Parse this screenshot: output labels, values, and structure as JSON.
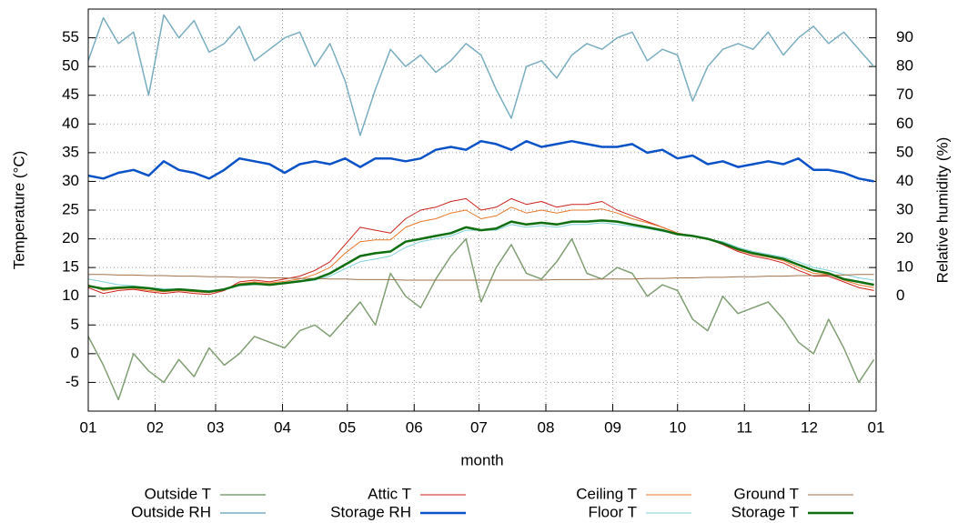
{
  "chart_data": {
    "type": "line",
    "xlabel": "month",
    "ylabel": "Temperature (°C)",
    "y2label": "Relative humidity (%)",
    "x": [
      0,
      7,
      14,
      21,
      28,
      35,
      42,
      49,
      56,
      63,
      70,
      77,
      84,
      91,
      98,
      105,
      112,
      119,
      126,
      133,
      140,
      147,
      154,
      161,
      168,
      175,
      182,
      189,
      196,
      203,
      210,
      217,
      224,
      231,
      238,
      245,
      252,
      259,
      266,
      273,
      280,
      287,
      294,
      301,
      308,
      315,
      322,
      329,
      336,
      343,
      350,
      357,
      364
    ],
    "xlim": [
      0,
      365
    ],
    "xticks": [
      {
        "value": 0,
        "label": "01"
      },
      {
        "value": 31,
        "label": "02"
      },
      {
        "value": 59,
        "label": "03"
      },
      {
        "value": 90,
        "label": "04"
      },
      {
        "value": 120,
        "label": "05"
      },
      {
        "value": 151,
        "label": "06"
      },
      {
        "value": 181,
        "label": "07"
      },
      {
        "value": 212,
        "label": "08"
      },
      {
        "value": 243,
        "label": "09"
      },
      {
        "value": 273,
        "label": "10"
      },
      {
        "value": 304,
        "label": "11"
      },
      {
        "value": 334,
        "label": "12"
      },
      {
        "value": 365,
        "label": "01"
      }
    ],
    "ylim": [
      -10,
      60
    ],
    "yticks": [
      -5,
      0,
      5,
      10,
      15,
      20,
      25,
      30,
      35,
      40,
      45,
      50,
      55
    ],
    "y2lim": [
      -40,
      100
    ],
    "y2ticks": [
      0,
      10,
      20,
      30,
      40,
      50,
      60,
      70,
      80,
      90
    ],
    "grid": true,
    "legend": "bottom",
    "series": [
      {
        "name": "Outside T",
        "color": "#7f9f73",
        "width": 1.5,
        "values": [
          3.0,
          -2.0,
          -8.0,
          0.0,
          -3.0,
          -5.0,
          -1.0,
          -4.0,
          1.0,
          -2.0,
          0.0,
          3.0,
          2.0,
          1.0,
          4.0,
          5.0,
          3.0,
          6.0,
          9.0,
          5.0,
          14.0,
          10.0,
          8.0,
          13.0,
          17.0,
          20.0,
          9.0,
          15.0,
          19.0,
          14.0,
          13.0,
          16.0,
          20.0,
          14.0,
          13.0,
          15.0,
          14.0,
          10.0,
          12.0,
          11.0,
          6.0,
          4.0,
          10.0,
          7.0,
          8.0,
          9.0,
          6.0,
          2.0,
          0.0,
          6.0,
          1.0,
          -5.0,
          -1.0
        ]
      },
      {
        "name": "Outside RH",
        "color": "#79adc0",
        "width": 1.5,
        "axis": "y2",
        "values": [
          82,
          97,
          88,
          92,
          70,
          98,
          90,
          96,
          85,
          88,
          94,
          82,
          86,
          90,
          92,
          80,
          88,
          75,
          56,
          72,
          86,
          80,
          84,
          78,
          82,
          88,
          84,
          72,
          62,
          80,
          82,
          76,
          84,
          88,
          86,
          90,
          92,
          82,
          86,
          84,
          68,
          80,
          86,
          88,
          86,
          92,
          84,
          90,
          94,
          88,
          92,
          86,
          80
        ]
      },
      {
        "name": "Attic T",
        "color": "#cc1f1a",
        "width": 1,
        "values": [
          11.5,
          10.5,
          11.0,
          11.2,
          10.8,
          10.5,
          10.8,
          10.5,
          10.3,
          11.0,
          12.5,
          12.8,
          12.5,
          13.0,
          13.5,
          14.5,
          16.0,
          19.0,
          22.0,
          21.5,
          21.0,
          23.5,
          25.0,
          25.5,
          26.5,
          27.0,
          25.0,
          25.5,
          27.0,
          26.0,
          26.5,
          25.5,
          26.0,
          26.0,
          26.5,
          25.0,
          24.0,
          23.0,
          22.0,
          21.0,
          20.5,
          20.0,
          19.0,
          17.8,
          17.0,
          16.5,
          15.8,
          14.5,
          13.5,
          13.5,
          12.5,
          11.5,
          11.0
        ]
      },
      {
        "name": "Storage RH",
        "color": "#0a52c8",
        "width": 2.5,
        "axis": "y2",
        "values": [
          42,
          41,
          43,
          44,
          42,
          47,
          44,
          43,
          41,
          44,
          48,
          47,
          46,
          43,
          46,
          47,
          46,
          48,
          45,
          48,
          48,
          47,
          48,
          51,
          52,
          51,
          54,
          53,
          51,
          54,
          52,
          53,
          54,
          53,
          52,
          52,
          53,
          50,
          51,
          48,
          49,
          46,
          47,
          45,
          46,
          47,
          46,
          48,
          44,
          44,
          43,
          41,
          40
        ]
      },
      {
        "name": "Ceiling T",
        "color": "#e6782a",
        "width": 1,
        "values": [
          12.0,
          11.0,
          11.3,
          11.4,
          11.0,
          10.8,
          11.0,
          10.8,
          10.6,
          11.1,
          12.2,
          12.5,
          12.3,
          12.6,
          13.0,
          13.8,
          15.0,
          17.5,
          19.5,
          19.8,
          19.8,
          22.0,
          23.0,
          23.5,
          24.5,
          25.0,
          23.5,
          24.0,
          25.5,
          24.5,
          25.0,
          24.5,
          25.0,
          25.0,
          25.2,
          24.5,
          23.5,
          22.8,
          22.0,
          21.0,
          20.5,
          20.0,
          19.2,
          18.0,
          17.3,
          16.8,
          16.2,
          15.0,
          14.0,
          13.8,
          12.8,
          12.0,
          11.5
        ]
      },
      {
        "name": "Floor T",
        "color": "#7dd0d8",
        "width": 1,
        "values": [
          13.0,
          12.5,
          12.0,
          11.8,
          11.5,
          11.3,
          11.2,
          11.0,
          11.0,
          11.2,
          11.8,
          12.0,
          12.0,
          12.2,
          12.5,
          12.8,
          13.5,
          14.8,
          16.0,
          16.5,
          17.0,
          18.5,
          19.5,
          20.0,
          20.5,
          21.5,
          21.5,
          21.5,
          22.5,
          22.0,
          22.3,
          22.0,
          22.5,
          22.5,
          22.8,
          22.5,
          22.2,
          21.8,
          21.3,
          20.8,
          20.5,
          20.0,
          19.5,
          18.5,
          17.8,
          17.3,
          16.8,
          16.0,
          15.0,
          14.5,
          13.8,
          13.2,
          12.8
        ]
      },
      {
        "name": "Ground T",
        "color": "#a0724b",
        "width": 1,
        "values": [
          13.8,
          13.8,
          13.7,
          13.7,
          13.6,
          13.6,
          13.5,
          13.5,
          13.4,
          13.4,
          13.3,
          13.3,
          13.2,
          13.2,
          13.1,
          13.1,
          13.0,
          13.0,
          12.9,
          12.9,
          12.9,
          12.8,
          12.8,
          12.8,
          12.8,
          12.8,
          12.8,
          12.8,
          12.8,
          12.8,
          12.8,
          12.9,
          12.9,
          12.9,
          13.0,
          13.0,
          13.0,
          13.1,
          13.1,
          13.2,
          13.2,
          13.3,
          13.3,
          13.4,
          13.4,
          13.5,
          13.5,
          13.6,
          13.6,
          13.7,
          13.7,
          13.8,
          13.8
        ]
      },
      {
        "name": "Storage T",
        "color": "#0f6e0f",
        "width": 2.5,
        "values": [
          11.8,
          11.3,
          11.5,
          11.6,
          11.4,
          11.0,
          11.2,
          11.0,
          10.8,
          11.2,
          12.0,
          12.2,
          12.0,
          12.3,
          12.6,
          13.0,
          14.0,
          15.5,
          17.0,
          17.5,
          17.8,
          19.5,
          20.0,
          20.5,
          21.0,
          22.0,
          21.5,
          21.8,
          23.0,
          22.5,
          22.8,
          22.5,
          23.0,
          23.0,
          23.2,
          23.0,
          22.5,
          22.0,
          21.5,
          20.8,
          20.5,
          20.0,
          19.2,
          18.2,
          17.5,
          17.0,
          16.5,
          15.5,
          14.5,
          14.0,
          13.0,
          12.5,
          12.0
        ]
      }
    ]
  }
}
